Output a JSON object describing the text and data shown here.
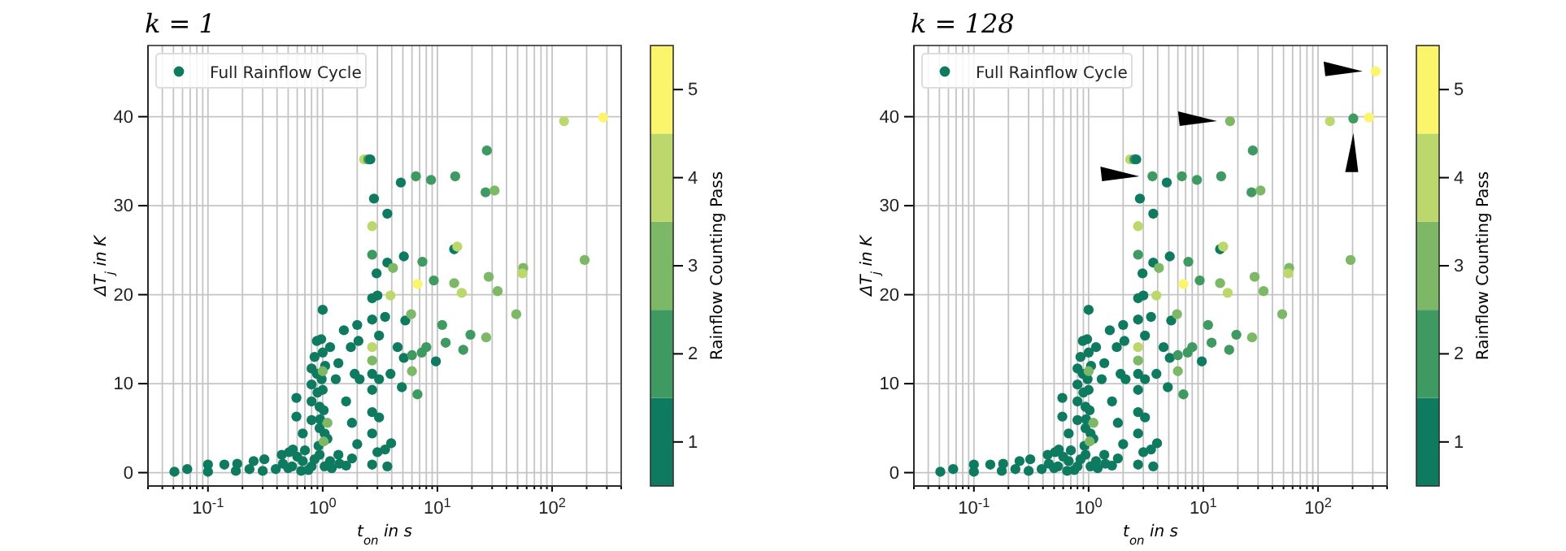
{
  "chart_data": [
    {
      "type": "scatter",
      "title": "k = 1",
      "xlabel": "t$_{on}$ in s",
      "ylabel": "ΔT$_{j}$ in K",
      "clabel": "Rainflow Counting Pass",
      "log": "x",
      "grid": true,
      "legend": "top left",
      "marker": "circle",
      "xlim": [
        0.03,
        400
      ],
      "ylim": [
        -1.5,
        48
      ],
      "xticks": [
        {
          "value": 0.03,
          "label": null
        },
        {
          "value": 0.04,
          "label": null
        },
        {
          "value": 0.05,
          "label": null
        },
        {
          "value": 0.06,
          "label": null
        },
        {
          "value": 0.07,
          "label": null
        },
        {
          "value": 0.08,
          "label": null
        },
        {
          "value": 0.09,
          "label": null
        },
        {
          "value": 0.1,
          "label": "10$^{-1}$"
        },
        {
          "value": 0.2,
          "label": null
        },
        {
          "value": 0.3,
          "label": null
        },
        {
          "value": 0.4,
          "label": null
        },
        {
          "value": 0.5,
          "label": null
        },
        {
          "value": 0.6,
          "label": null
        },
        {
          "value": 0.7,
          "label": null
        },
        {
          "value": 0.8,
          "label": null
        },
        {
          "value": 0.9,
          "label": null
        },
        {
          "value": 1,
          "label": "10$^{0}$"
        },
        {
          "value": 2,
          "label": null
        },
        {
          "value": 3,
          "label": null
        },
        {
          "value": 4,
          "label": null
        },
        {
          "value": 5,
          "label": null
        },
        {
          "value": 6,
          "label": null
        },
        {
          "value": 7,
          "label": null
        },
        {
          "value": 8,
          "label": null
        },
        {
          "value": 9,
          "label": null
        },
        {
          "value": 10,
          "label": "10$^{1}$"
        },
        {
          "value": 20,
          "label": null
        },
        {
          "value": 30,
          "label": null
        },
        {
          "value": 40,
          "label": null
        },
        {
          "value": 50,
          "label": null
        },
        {
          "value": 60,
          "label": null
        },
        {
          "value": 70,
          "label": null
        },
        {
          "value": 80,
          "label": null
        },
        {
          "value": 90,
          "label": null
        },
        {
          "value": 100,
          "label": "10$^{2}$"
        },
        {
          "value": 200,
          "label": null
        },
        {
          "value": 300,
          "label": null
        },
        {
          "value": 400,
          "label": null
        }
      ],
      "yticks": [
        0,
        10,
        20,
        30,
        40
      ],
      "clim": [
        0.5,
        5.5
      ],
      "cticks": [
        1,
        2,
        3,
        4,
        5
      ],
      "series": [
        {
          "name": "Full Rainflow Cycle",
          "x": [
            0.051,
            0.066,
            0.1,
            0.1,
            0.139,
            0.175,
            0.18,
            0.23,
            0.25,
            0.3,
            0.31,
            0.39,
            0.44,
            0.51,
            0.54,
            0.59,
            0.59,
            0.67,
            0.67,
            0.8,
            0.8,
            0.8,
            0.8,
            0.8,
            0.89,
            0.89,
            0.94,
            0.94,
            0.94,
            1,
            1,
            1,
            1.04,
            1.04,
            1.16,
            1.1,
            1.16,
            1.3,
            1.37,
            1.37,
            1.53,
            1.6,
            1.76,
            1.8,
            1.8,
            1.9,
            2,
            2,
            2.05,
            2.1,
            2.3,
            2.5,
            2.6,
            2.7,
            2.7,
            2.7,
            2.7,
            2.7,
            2.7,
            2.7,
            2.7,
            2.7,
            2.7,
            2.7,
            2.8,
            2.95,
            3,
            3.1,
            3.1,
            3.1,
            3,
            3.5,
            3.5,
            3.66,
            3.66,
            3.66,
            3.9,
            3.9,
            3.95,
            4.1,
            4.5,
            4.8,
            5.1,
            4.9,
            5.1,
            5.25,
            5.9,
            6,
            6,
            6.5,
            6.7,
            6.7,
            7.3,
            7.4,
            8,
            8.8,
            9.3,
            9.7,
            11,
            11.8,
            14,
            14,
            14.3,
            14.9,
            16.3,
            16.8,
            19.4,
            26.3,
            27,
            26.6,
            28,
            31.5,
            33.5,
            48.7,
            56,
            55,
            127,
            192,
            278,
            0.45,
            0.5,
            0.6,
            0.7,
            0.75,
            0.85,
            1.2,
            1.4,
            1.6,
            0.55,
            0.65,
            0.92,
            0.95,
            0.98,
            1.05,
            0.85,
            0.9,
            1.02,
            0.97,
            1,
            1.1,
            1.02
          ],
          "values": [
            0.1,
            0.4,
            0.9,
            0.1,
            0.9,
            0.2,
            1,
            0.4,
            1.3,
            0.2,
            1.5,
            0.4,
            2,
            2.3,
            0.7,
            8.4,
            6.3,
            4.4,
            1.3,
            0.7,
            11.7,
            9.9,
            8,
            5.9,
            14.8,
            11.1,
            7.4,
            5,
            2,
            18.3,
            13.5,
            9.3,
            4.4,
            0.7,
            1.3,
            3.8,
            14.1,
            10.5,
            12.3,
            2,
            16,
            8,
            14.1,
            5.6,
            1.6,
            11.1,
            16.6,
            3.2,
            14.8,
            10.5,
            35.2,
            35.2,
            35.2,
            0.9,
            4.4,
            6.8,
            9.3,
            11.1,
            12.6,
            14.1,
            17.2,
            19.6,
            24.5,
            27.7,
            30.8,
            22.4,
            19.9,
            15.4,
            10.5,
            6.2,
            2.3,
            17.5,
            2.6,
            29.1,
            23.6,
            0.7,
            19.9,
            11.1,
            3.3,
            23,
            14.1,
            32.6,
            12.9,
            9.6,
            24.3,
            17.1,
            17.8,
            13.2,
            11.4,
            33.3,
            21.2,
            8.8,
            13.5,
            23.7,
            14.1,
            32.9,
            21.6,
            12.5,
            16.6,
            14.6,
            25.1,
            21.3,
            33.3,
            25.4,
            20.2,
            13.8,
            15.5,
            31.5,
            36.2,
            15.2,
            22,
            31.7,
            20.4,
            17.8,
            23,
            22.4,
            39.5,
            23.9,
            39.9,
            1,
            0.5,
            1.8,
            2.5,
            0.3,
            1.5,
            0.5,
            1,
            0.8,
            2.6,
            0.2,
            3,
            6,
            10.5,
            12,
            13,
            9,
            7,
            15,
            11.4,
            5.6,
            3.5
          ],
          "colors": [
            "#0e7a5f",
            "#0e7a5f",
            "#0e7a5f",
            "#0e7a5f",
            "#0e7a5f",
            "#0e7a5f",
            "#0e7a5f",
            "#0e7a5f",
            "#0e7a5f",
            "#0e7a5f",
            "#0e7a5f",
            "#0e7a5f",
            "#0e7a5f",
            "#0e7a5f",
            "#0e7a5f",
            "#0e7a5f",
            "#0e7a5f",
            "#0e7a5f",
            "#0e7a5f",
            "#0e7a5f",
            "#0e7a5f",
            "#0e7a5f",
            "#0e7a5f",
            "#0e7a5f",
            "#0e7a5f",
            "#0e7a5f",
            "#0e7a5f",
            "#0e7a5f",
            "#0e7a5f",
            "#0e7a5f",
            "#0e7a5f",
            "#0e7a5f",
            "#0e7a5f",
            "#0e7a5f",
            "#0e7a5f",
            "#0e7a5f",
            "#0e7a5f",
            "#0e7a5f",
            "#0e7a5f",
            "#0e7a5f",
            "#0e7a5f",
            "#0e7a5f",
            "#0e7a5f",
            "#0e7a5f",
            "#0e7a5f",
            "#0e7a5f",
            "#0e7a5f",
            "#0e7a5f",
            "#0e7a5f",
            "#0e7a5f",
            "#bcd76c",
            "#3f9a62",
            "#0e7a5f",
            "#0e7a5f",
            "#0e7a5f",
            "#0e7a5f",
            "#0e7a5f",
            "#0e7a5f",
            "#7cb866",
            "#bcd76c",
            "#0e7a5f",
            "#0e7a5f",
            "#3f9a62",
            "#bcd76c",
            "#0e7a5f",
            "#0e7a5f",
            "#0e7a5f",
            "#0e7a5f",
            "#0e7a5f",
            "#0e7a5f",
            "#0e7a5f",
            "#0e7a5f",
            "#0e7a5f",
            "#0e7a5f",
            "#0e7a5f",
            "#0e7a5f",
            "#bcd76c",
            "#0e7a5f",
            "#0e7a5f",
            "#7cb866",
            "#0e7a5f",
            "#0e7a5f",
            "#0e7a5f",
            "#0e7a5f",
            "#0e7a5f",
            "#0e7a5f",
            "#7cb866",
            "#3f9a62",
            "#7cb866",
            "#3f9a62",
            "#fbf56c",
            "#3f9a62",
            "#3f9a62",
            "#3f9a62",
            "#3f9a62",
            "#3f9a62",
            "#3f9a62",
            "#0e7a5f",
            "#3f9a62",
            "#3f9a62",
            "#0e7a5f",
            "#7cb866",
            "#3f9a62",
            "#bcd76c",
            "#bcd76c",
            "#3f9a62",
            "#3f9a62",
            "#3f9a62",
            "#3f9a62",
            "#7cb866",
            "#7cb866",
            "#7cb866",
            "#7cb866",
            "#7cb866",
            "#7cb866",
            "#bcd76c",
            "#bcd76c",
            "#7cb866",
            "#fbf56c",
            "#0e7a5f",
            "#0e7a5f",
            "#0e7a5f",
            "#0e7a5f",
            "#0e7a5f",
            "#0e7a5f",
            "#0e7a5f",
            "#0e7a5f",
            "#0e7a5f",
            "#0e7a5f",
            "#0e7a5f",
            "#0e7a5f",
            "#0e7a5f",
            "#0e7a5f",
            "#0e7a5f",
            "#0e7a5f",
            "#0e7a5f",
            "#0e7a5f",
            "#0e7a5f",
            "#7cb866",
            "#7cb866",
            "#7cb866"
          ]
        }
      ]
    },
    {
      "type": "scatter",
      "title": "k = 128",
      "xlabel": "t$_{on}$ in s",
      "ylabel": "ΔT$_{j}$ in K",
      "clabel": "Rainflow Counting Pass",
      "log": "x",
      "grid": true,
      "legend": "top left",
      "marker": "circle",
      "xlim": [
        0.03,
        400
      ],
      "ylim": [
        -1.5,
        48
      ],
      "xticks": [
        {
          "value": 0.03,
          "label": null
        },
        {
          "value": 0.04,
          "label": null
        },
        {
          "value": 0.05,
          "label": null
        },
        {
          "value": 0.06,
          "label": null
        },
        {
          "value": 0.07,
          "label": null
        },
        {
          "value": 0.08,
          "label": null
        },
        {
          "value": 0.09,
          "label": null
        },
        {
          "value": 0.1,
          "label": "10$^{-1}$"
        },
        {
          "value": 0.2,
          "label": null
        },
        {
          "value": 0.3,
          "label": null
        },
        {
          "value": 0.4,
          "label": null
        },
        {
          "value": 0.5,
          "label": null
        },
        {
          "value": 0.6,
          "label": null
        },
        {
          "value": 0.7,
          "label": null
        },
        {
          "value": 0.8,
          "label": null
        },
        {
          "value": 0.9,
          "label": null
        },
        {
          "value": 1,
          "label": "10$^{0}$"
        },
        {
          "value": 2,
          "label": null
        },
        {
          "value": 3,
          "label": null
        },
        {
          "value": 4,
          "label": null
        },
        {
          "value": 5,
          "label": null
        },
        {
          "value": 6,
          "label": null
        },
        {
          "value": 7,
          "label": null
        },
        {
          "value": 8,
          "label": null
        },
        {
          "value": 9,
          "label": null
        },
        {
          "value": 10,
          "label": "10$^{1}$"
        },
        {
          "value": 20,
          "label": null
        },
        {
          "value": 30,
          "label": null
        },
        {
          "value": 40,
          "label": null
        },
        {
          "value": 50,
          "label": null
        },
        {
          "value": 60,
          "label": null
        },
        {
          "value": 70,
          "label": null
        },
        {
          "value": 80,
          "label": null
        },
        {
          "value": 90,
          "label": null
        },
        {
          "value": 100,
          "label": "10$^{2}$"
        },
        {
          "value": 200,
          "label": null
        },
        {
          "value": 300,
          "label": null
        },
        {
          "value": 400,
          "label": null
        }
      ],
      "yticks": [
        0,
        10,
        20,
        30,
        40
      ],
      "clim": [
        0.5,
        5.5
      ],
      "cticks": [
        1,
        2,
        3,
        4,
        5
      ],
      "series": [
        {
          "name": "Full Rainflow Cycle",
          "x": [
            0.051,
            0.066,
            0.1,
            0.1,
            0.139,
            0.175,
            0.18,
            0.23,
            0.25,
            0.3,
            0.31,
            0.39,
            0.44,
            0.51,
            0.54,
            0.59,
            0.59,
            0.67,
            0.67,
            0.8,
            0.8,
            0.8,
            0.8,
            0.8,
            0.89,
            0.89,
            0.94,
            0.94,
            0.94,
            1,
            1,
            1,
            1.04,
            1.04,
            1.16,
            1.1,
            1.16,
            1.3,
            1.37,
            1.37,
            1.53,
            1.6,
            1.76,
            1.8,
            1.8,
            1.9,
            2,
            2,
            2.05,
            2.1,
            2.3,
            2.5,
            2.6,
            2.7,
            2.7,
            2.7,
            2.7,
            2.7,
            2.7,
            2.7,
            2.7,
            2.7,
            2.7,
            2.7,
            2.8,
            2.95,
            3,
            3.1,
            3.1,
            3.1,
            3,
            3.5,
            3.5,
            3.66,
            3.66,
            3.66,
            3.9,
            3.9,
            3.95,
            4.1,
            4.5,
            4.8,
            5.1,
            4.9,
            5.1,
            5.25,
            5.9,
            6,
            6,
            6.5,
            6.7,
            6.7,
            7.3,
            7.4,
            8,
            8.8,
            9.3,
            9.7,
            11,
            11.8,
            14,
            14,
            14.3,
            14.9,
            16.3,
            16.8,
            19.4,
            26.3,
            27,
            26.6,
            28,
            31.5,
            33.5,
            48.7,
            56,
            55,
            127,
            192,
            278,
            0.45,
            0.5,
            0.6,
            0.7,
            0.75,
            0.85,
            1.2,
            1.4,
            1.6,
            0.55,
            0.65,
            0.92,
            0.95,
            0.98,
            1.05,
            0.85,
            0.9,
            1.02,
            0.97,
            1,
            1.1,
            1.02
          ],
          "values": [
            0.1,
            0.4,
            0.9,
            0.1,
            0.9,
            0.2,
            1,
            0.4,
            1.3,
            0.2,
            1.5,
            0.4,
            2,
            2.3,
            0.7,
            8.4,
            6.3,
            4.4,
            1.3,
            0.7,
            11.7,
            9.9,
            8,
            5.9,
            14.8,
            11.1,
            7.4,
            5,
            2,
            18.3,
            13.5,
            9.3,
            4.4,
            0.7,
            1.3,
            3.8,
            14.1,
            10.5,
            12.3,
            2,
            16,
            8,
            14.1,
            5.6,
            1.6,
            11.1,
            16.6,
            3.2,
            14.8,
            10.5,
            35.2,
            35.2,
            35.2,
            0.9,
            4.4,
            6.8,
            9.3,
            11.1,
            12.6,
            14.1,
            17.2,
            19.6,
            24.5,
            27.7,
            30.8,
            22.4,
            19.9,
            15.4,
            10.5,
            6.2,
            2.3,
            17.5,
            2.6,
            29.1,
            23.6,
            0.7,
            19.9,
            11.1,
            3.3,
            23,
            14.1,
            32.6,
            12.9,
            9.6,
            24.3,
            17.1,
            17.8,
            13.2,
            11.4,
            33.3,
            21.2,
            8.8,
            13.5,
            23.7,
            14.1,
            32.9,
            21.6,
            12.5,
            16.6,
            14.6,
            25.1,
            21.3,
            33.3,
            25.4,
            20.2,
            13.8,
            15.5,
            31.5,
            36.2,
            15.2,
            22,
            31.7,
            20.4,
            17.8,
            23,
            22.4,
            39.5,
            23.9,
            39.9,
            1,
            0.5,
            1.8,
            2.5,
            0.3,
            1.5,
            0.5,
            1,
            0.8,
            2.6,
            0.2,
            3,
            6,
            10.5,
            12,
            13,
            9,
            7,
            15,
            11.4,
            5.6,
            3.5
          ],
          "colors": [
            "#0e7a5f",
            "#0e7a5f",
            "#0e7a5f",
            "#0e7a5f",
            "#0e7a5f",
            "#0e7a5f",
            "#0e7a5f",
            "#0e7a5f",
            "#0e7a5f",
            "#0e7a5f",
            "#0e7a5f",
            "#0e7a5f",
            "#0e7a5f",
            "#0e7a5f",
            "#0e7a5f",
            "#0e7a5f",
            "#0e7a5f",
            "#0e7a5f",
            "#0e7a5f",
            "#0e7a5f",
            "#0e7a5f",
            "#0e7a5f",
            "#0e7a5f",
            "#0e7a5f",
            "#0e7a5f",
            "#0e7a5f",
            "#0e7a5f",
            "#0e7a5f",
            "#0e7a5f",
            "#0e7a5f",
            "#0e7a5f",
            "#0e7a5f",
            "#0e7a5f",
            "#0e7a5f",
            "#0e7a5f",
            "#0e7a5f",
            "#0e7a5f",
            "#0e7a5f",
            "#0e7a5f",
            "#0e7a5f",
            "#0e7a5f",
            "#0e7a5f",
            "#0e7a5f",
            "#0e7a5f",
            "#0e7a5f",
            "#0e7a5f",
            "#0e7a5f",
            "#0e7a5f",
            "#0e7a5f",
            "#0e7a5f",
            "#bcd76c",
            "#3f9a62",
            "#0e7a5f",
            "#0e7a5f",
            "#0e7a5f",
            "#0e7a5f",
            "#0e7a5f",
            "#0e7a5f",
            "#7cb866",
            "#bcd76c",
            "#0e7a5f",
            "#0e7a5f",
            "#3f9a62",
            "#bcd76c",
            "#0e7a5f",
            "#0e7a5f",
            "#0e7a5f",
            "#0e7a5f",
            "#0e7a5f",
            "#0e7a5f",
            "#0e7a5f",
            "#0e7a5f",
            "#0e7a5f",
            "#0e7a5f",
            "#0e7a5f",
            "#0e7a5f",
            "#bcd76c",
            "#0e7a5f",
            "#0e7a5f",
            "#7cb866",
            "#0e7a5f",
            "#0e7a5f",
            "#0e7a5f",
            "#0e7a5f",
            "#0e7a5f",
            "#0e7a5f",
            "#7cb866",
            "#3f9a62",
            "#7cb866",
            "#3f9a62",
            "#fbf56c",
            "#3f9a62",
            "#3f9a62",
            "#3f9a62",
            "#3f9a62",
            "#3f9a62",
            "#3f9a62",
            "#0e7a5f",
            "#3f9a62",
            "#3f9a62",
            "#0e7a5f",
            "#7cb866",
            "#3f9a62",
            "#bcd76c",
            "#bcd76c",
            "#3f9a62",
            "#3f9a62",
            "#3f9a62",
            "#3f9a62",
            "#7cb866",
            "#7cb866",
            "#7cb866",
            "#7cb866",
            "#7cb866",
            "#7cb866",
            "#bcd76c",
            "#bcd76c",
            "#7cb866",
            "#fbf56c",
            "#0e7a5f",
            "#0e7a5f",
            "#0e7a5f",
            "#0e7a5f",
            "#0e7a5f",
            "#0e7a5f",
            "#0e7a5f",
            "#0e7a5f",
            "#0e7a5f",
            "#0e7a5f",
            "#0e7a5f",
            "#0e7a5f",
            "#0e7a5f",
            "#0e7a5f",
            "#0e7a5f",
            "#0e7a5f",
            "#0e7a5f",
            "#0e7a5f",
            "#0e7a5f",
            "#7cb866",
            "#7cb866",
            "#7cb866"
          ]
        },
        {
          "x": [
            3.6,
            17.1,
            203,
            318
          ],
          "values": [
            33.3,
            39.5,
            39.8,
            45.1
          ],
          "colors": [
            "#3f9a62",
            "#7cb866",
            "#3f9a62",
            "#fbf56c"
          ]
        }
      ]
    }
  ]
}
